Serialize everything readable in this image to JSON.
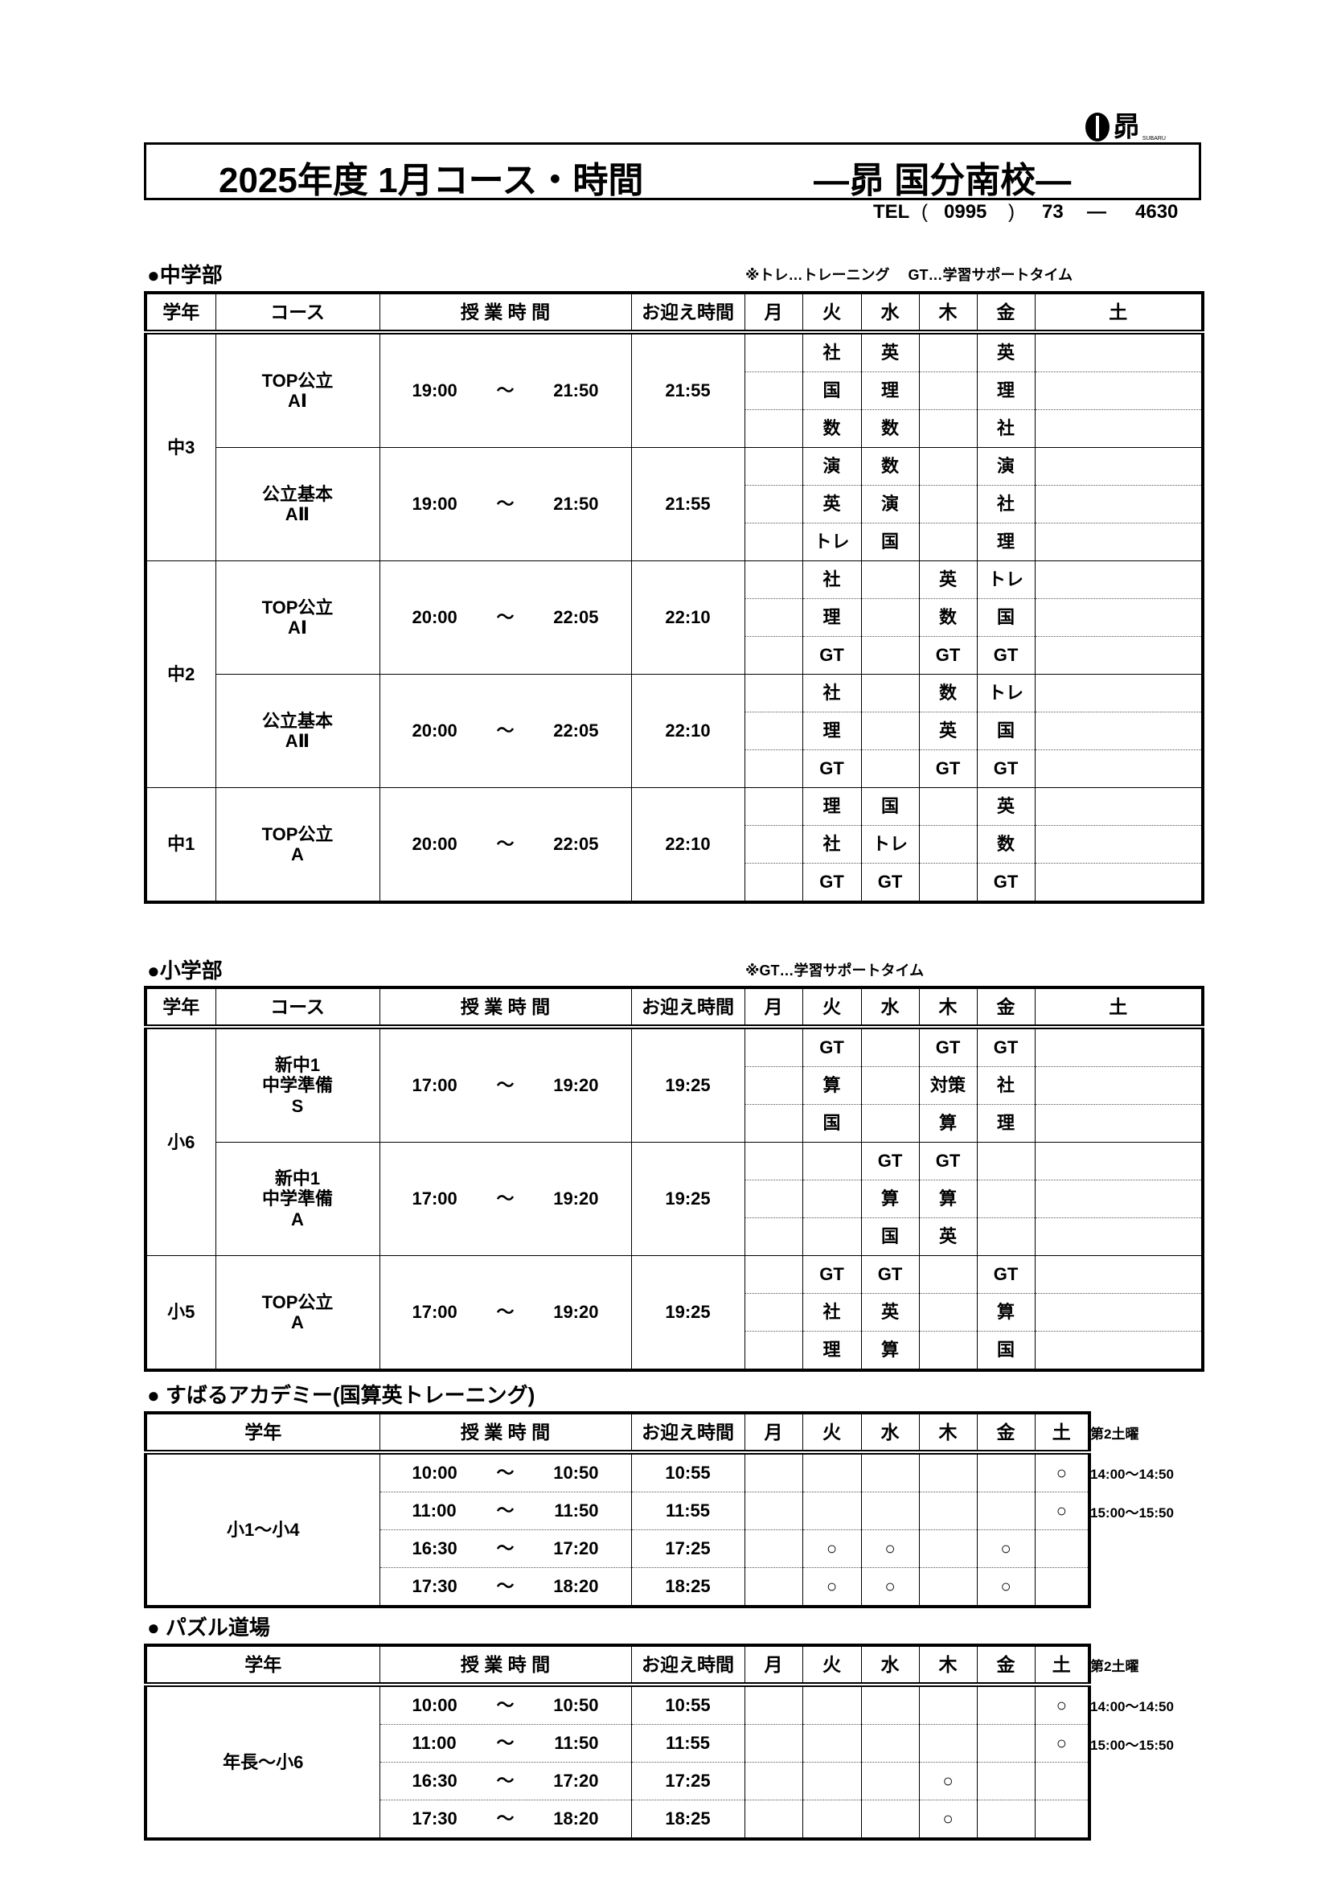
{
  "header": {
    "logo_text": "昴",
    "logo_sub": "SUBARU",
    "title": "2025年度 1月コース・時間",
    "school": "—昴  国分南校—",
    "tel": {
      "label": "TEL",
      "area": "0995",
      "exchange": "73",
      "dash": "—",
      "number": "4630",
      "paren_open": "(",
      "paren_close": ")"
    }
  },
  "days": [
    "月",
    "火",
    "水",
    "木",
    "金",
    "土"
  ],
  "headers": {
    "grade": "学年",
    "course": "コース",
    "time": "授 業 時 間",
    "pickup": "お迎え時間",
    "tilde": "〜"
  },
  "middle": {
    "title": "●中学部",
    "note": "※トレ…トレーニング　 GT…学習サポートタイム",
    "groups": [
      {
        "grade": "中3",
        "courses": [
          {
            "name": [
              "TOP公立",
              "AⅠ"
            ],
            "start": "19:00",
            "end": "21:50",
            "pickup": "21:55",
            "rows": [
              [
                "",
                "社",
                "英",
                "",
                "英",
                ""
              ],
              [
                "",
                "国",
                "理",
                "",
                "理",
                ""
              ],
              [
                "",
                "数",
                "数",
                "",
                "社",
                ""
              ]
            ]
          },
          {
            "name": [
              "公立基本",
              "AⅡ"
            ],
            "start": "19:00",
            "end": "21:50",
            "pickup": "21:55",
            "rows": [
              [
                "",
                "演",
                "数",
                "",
                "演",
                ""
              ],
              [
                "",
                "英",
                "演",
                "",
                "社",
                ""
              ],
              [
                "",
                "トレ",
                "国",
                "",
                "理",
                ""
              ]
            ]
          }
        ]
      },
      {
        "grade": "中2",
        "courses": [
          {
            "name": [
              "TOP公立",
              "AⅠ"
            ],
            "start": "20:00",
            "end": "22:05",
            "pickup": "22:10",
            "rows": [
              [
                "",
                "社",
                "",
                "英",
                "トレ",
                ""
              ],
              [
                "",
                "理",
                "",
                "数",
                "国",
                ""
              ],
              [
                "",
                "GT",
                "",
                "GT",
                "GT",
                ""
              ]
            ]
          },
          {
            "name": [
              "公立基本",
              "AⅡ"
            ],
            "start": "20:00",
            "end": "22:05",
            "pickup": "22:10",
            "rows": [
              [
                "",
                "社",
                "",
                "数",
                "トレ",
                ""
              ],
              [
                "",
                "理",
                "",
                "英",
                "国",
                ""
              ],
              [
                "",
                "GT",
                "",
                "GT",
                "GT",
                ""
              ]
            ]
          }
        ]
      },
      {
        "grade": "中1",
        "courses": [
          {
            "name": [
              "TOP公立",
              "A"
            ],
            "start": "20:00",
            "end": "22:05",
            "pickup": "22:10",
            "rows": [
              [
                "",
                "理",
                "国",
                "",
                "英",
                ""
              ],
              [
                "",
                "社",
                "トレ",
                "",
                "数",
                ""
              ],
              [
                "",
                "GT",
                "GT",
                "",
                "GT",
                ""
              ]
            ]
          }
        ]
      }
    ]
  },
  "elementary": {
    "title": "●小学部",
    "note": "※GT…学習サポートタイム",
    "groups": [
      {
        "grade": "小6",
        "courses": [
          {
            "name": [
              "新中1",
              "中学準備",
              "S"
            ],
            "start": "17:00",
            "end": "19:20",
            "pickup": "19:25",
            "rows": [
              [
                "",
                "GT",
                "",
                "GT",
                "GT",
                ""
              ],
              [
                "",
                "算",
                "",
                "対策",
                "社",
                ""
              ],
              [
                "",
                "国",
                "",
                "算",
                "理",
                ""
              ]
            ]
          },
          {
            "name": [
              "新中1",
              "中学準備",
              "A"
            ],
            "start": "17:00",
            "end": "19:20",
            "pickup": "19:25",
            "rows": [
              [
                "",
                "",
                "GT",
                "GT",
                "",
                ""
              ],
              [
                "",
                "",
                "算",
                "算",
                "",
                ""
              ],
              [
                "",
                "",
                "国",
                "英",
                "",
                ""
              ]
            ]
          }
        ]
      },
      {
        "grade": "小5",
        "courses": [
          {
            "name": [
              "TOP公立",
              "A"
            ],
            "start": "17:00",
            "end": "19:20",
            "pickup": "19:25",
            "rows": [
              [
                "",
                "GT",
                "GT",
                "",
                "GT",
                ""
              ],
              [
                "",
                "社",
                "英",
                "",
                "算",
                ""
              ],
              [
                "",
                "理",
                "算",
                "",
                "国",
                ""
              ]
            ]
          }
        ]
      }
    ]
  },
  "academy": {
    "title": "● すばるアカデミー(国算英トレーニング)",
    "grade": "小1〜小4",
    "side_header": "第2土曜",
    "rows": [
      {
        "start": "10:00",
        "end": "10:50",
        "pickup": "10:55",
        "marks": [
          "",
          "",
          "",
          "",
          "",
          "○"
        ],
        "side": "14:00〜14:50"
      },
      {
        "start": "11:00",
        "end": "11:50",
        "pickup": "11:55",
        "marks": [
          "",
          "",
          "",
          "",
          "",
          "○"
        ],
        "side": "15:00〜15:50"
      },
      {
        "start": "16:30",
        "end": "17:20",
        "pickup": "17:25",
        "marks": [
          "",
          "○",
          "○",
          "",
          "○",
          ""
        ],
        "side": ""
      },
      {
        "start": "17:30",
        "end": "18:20",
        "pickup": "18:25",
        "marks": [
          "",
          "○",
          "○",
          "",
          "○",
          ""
        ],
        "side": ""
      }
    ]
  },
  "puzzle": {
    "title": "● パズル道場",
    "grade": "年長〜小6",
    "side_header": "第2土曜",
    "rows": [
      {
        "start": "10:00",
        "end": "10:50",
        "pickup": "10:55",
        "marks": [
          "",
          "",
          "",
          "",
          "",
          "○"
        ],
        "side": "14:00〜14:50"
      },
      {
        "start": "11:00",
        "end": "11:50",
        "pickup": "11:55",
        "marks": [
          "",
          "",
          "",
          "",
          "",
          "○"
        ],
        "side": "15:00〜15:50"
      },
      {
        "start": "16:30",
        "end": "17:20",
        "pickup": "17:25",
        "marks": [
          "",
          "",
          "",
          "○",
          "",
          ""
        ],
        "side": ""
      },
      {
        "start": "17:30",
        "end": "18:20",
        "pickup": "18:25",
        "marks": [
          "",
          "",
          "",
          "○",
          "",
          ""
        ],
        "side": ""
      }
    ]
  }
}
